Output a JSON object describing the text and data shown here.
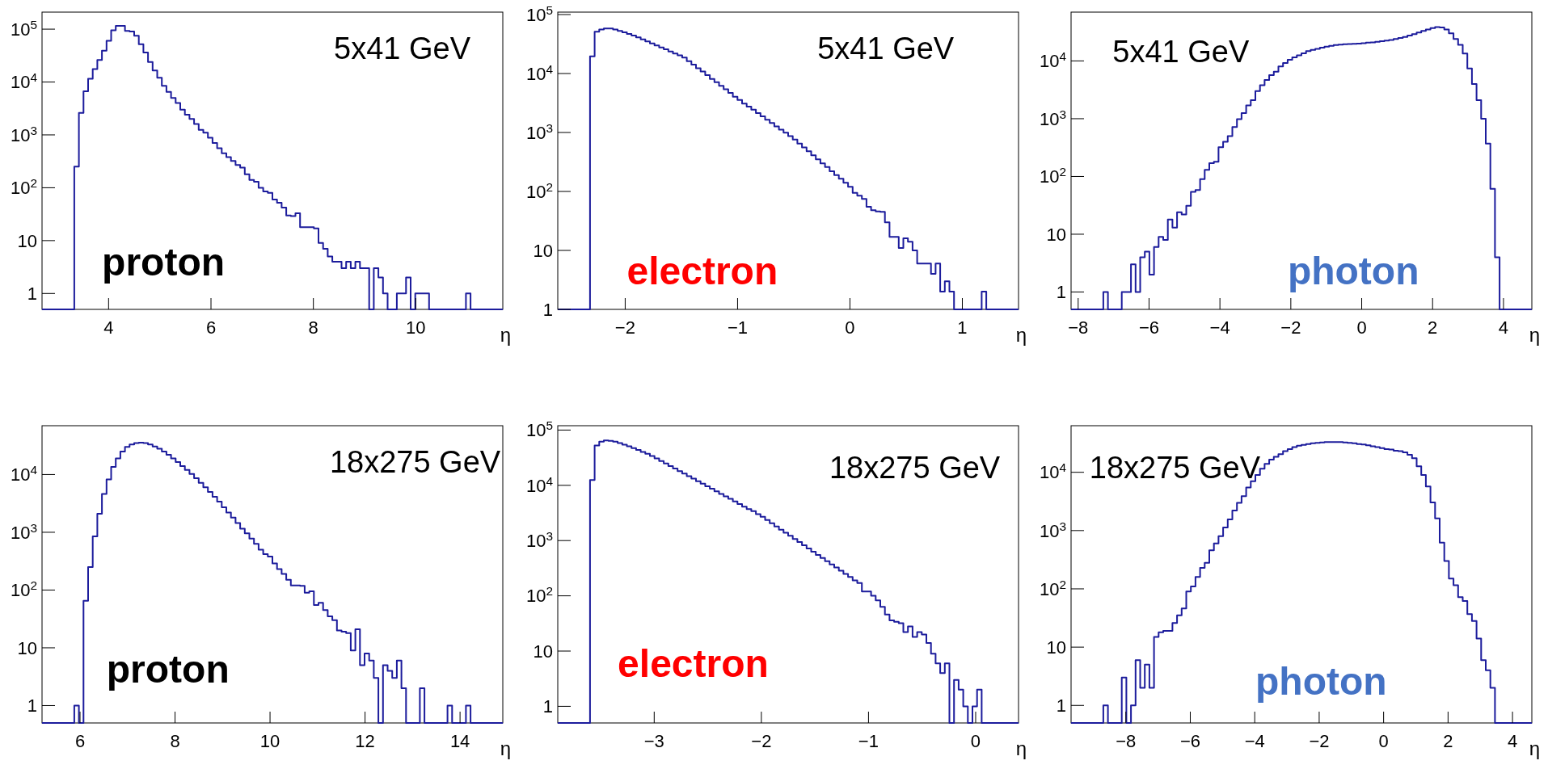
{
  "chart_data": [
    {
      "type": "histogram",
      "xlabel": "η",
      "annotations": [
        "5x41 GeV",
        "proton"
      ],
      "log": "y",
      "color": "#1c1c9c",
      "xlim": [
        2.7,
        11.7
      ],
      "ylim": [
        0.5,
        210000
      ],
      "xticks": [
        4,
        6,
        8,
        10
      ],
      "yticks": [
        {
          "value": 1,
          "label": "1"
        },
        {
          "value": 10,
          "label": "10"
        },
        {
          "value": 100,
          "label": "10$^{2}$"
        },
        {
          "value": 1000,
          "label": "10$^{3}$"
        },
        {
          "value": 10000,
          "label": "10$^{4}$"
        },
        {
          "value": 100000,
          "label": "10$^{5}$"
        }
      ],
      "bins": [
        2.7,
        2.79,
        2.88,
        2.97,
        3.06,
        3.15,
        3.24,
        3.33,
        3.42,
        3.51,
        3.6,
        3.69,
        3.78,
        3.87,
        3.96,
        4.05,
        4.14,
        4.23,
        4.32,
        4.41,
        4.5,
        4.59,
        4.68,
        4.77,
        4.86,
        4.95,
        5.04,
        5.13,
        5.22,
        5.31,
        5.4,
        5.49,
        5.58,
        5.67,
        5.76,
        5.85,
        5.94,
        6.03,
        6.12,
        6.21,
        6.3,
        6.39,
        6.48,
        6.57,
        6.66,
        6.75,
        6.84,
        6.93,
        7.02,
        7.11,
        7.2,
        7.29,
        7.38,
        7.47,
        7.56,
        7.65,
        7.74,
        7.83,
        7.92,
        8.01,
        8.1,
        8.19,
        8.28,
        8.37,
        8.46,
        8.55,
        8.64,
        8.73,
        8.82,
        8.91,
        9,
        9.09,
        9.18,
        9.27,
        9.36,
        9.45,
        9.54,
        9.63,
        9.72,
        9.81,
        9.9,
        9.99,
        10.08,
        10.17,
        10.26,
        10.35,
        10.44,
        10.53,
        10.62,
        10.71,
        10.8,
        10.89,
        10.98,
        11.07,
        11.16,
        11.25,
        11.34,
        11.43,
        11.52,
        11.61,
        11.7
      ],
      "values": [
        null,
        null,
        null,
        null,
        null,
        null,
        null,
        250,
        2600,
        6700,
        11500,
        17500,
        26000,
        39000,
        60000,
        95000,
        115000,
        115000,
        93000,
        90000,
        75000,
        52000,
        36000,
        24000,
        16500,
        12000,
        8500,
        6500,
        5000,
        4000,
        3000,
        2400,
        2000,
        1600,
        1250,
        1100,
        880,
        700,
        560,
        450,
        380,
        320,
        270,
        240,
        180,
        140,
        130,
        100,
        85,
        80,
        60,
        52,
        42,
        30,
        29,
        33,
        18,
        18,
        18,
        17,
        9,
        7,
        5,
        4,
        4,
        3,
        4,
        3,
        4,
        3,
        3,
        null,
        3,
        2,
        1,
        null,
        null,
        1,
        1,
        2,
        null,
        1,
        1,
        1,
        null,
        null,
        null,
        null,
        null,
        null,
        null,
        null,
        1,
        null,
        null,
        null,
        null,
        null,
        null,
        null
      ]
    },
    {
      "type": "histogram",
      "xlabel": "η",
      "annotations": [
        "5x41 GeV",
        "electron"
      ],
      "log": "y",
      "color": "#1c1c9c",
      "xlim": [
        -2.6,
        1.5
      ],
      "ylim": [
        1,
        110000
      ],
      "xticks": [
        {
          "value": -2,
          "label": "−2"
        },
        {
          "value": -1,
          "label": "−1"
        },
        0,
        1
      ],
      "yticks": [
        {
          "value": 1,
          "label": "1"
        },
        {
          "value": 10,
          "label": "10"
        },
        {
          "value": 100,
          "label": "10$^{2}$"
        },
        {
          "value": 1000,
          "label": "10$^{3}$"
        },
        {
          "value": 10000,
          "label": "10$^{4}$"
        },
        {
          "value": 100000,
          "label": "10$^{5}$"
        }
      ],
      "bins": [
        -2.6,
        -2.559,
        -2.518,
        -2.477,
        -2.436,
        -2.395,
        -2.354,
        -2.313,
        -2.272,
        -2.231,
        -2.19,
        -2.149,
        -2.108,
        -2.067,
        -2.026,
        -1.985,
        -1.944,
        -1.903,
        -1.862,
        -1.821,
        -1.78,
        -1.739,
        -1.698,
        -1.657,
        -1.616,
        -1.575,
        -1.534,
        -1.493,
        -1.452,
        -1.411,
        -1.37,
        -1.329,
        -1.288,
        -1.247,
        -1.206,
        -1.165,
        -1.124,
        -1.083,
        -1.042,
        -1.001,
        -0.96,
        -0.919,
        -0.878,
        -0.837,
        -0.796,
        -0.755,
        -0.714,
        -0.673,
        -0.632,
        -0.591,
        -0.55,
        -0.509,
        -0.468,
        -0.427,
        -0.386,
        -0.345,
        -0.304,
        -0.263,
        -0.222,
        -0.181,
        -0.14,
        -0.099,
        -0.058,
        -0.017,
        0.024,
        0.065,
        0.106,
        0.147,
        0.188,
        0.229,
        0.27,
        0.311,
        0.352,
        0.393,
        0.434,
        0.475,
        0.516,
        0.557,
        0.598,
        0.639,
        0.68,
        0.721,
        0.762,
        0.803,
        0.844,
        0.885,
        0.926,
        0.967,
        1.008,
        1.049,
        1.09,
        1.131,
        1.172,
        1.213,
        1.254,
        1.295,
        1.336,
        1.377,
        1.418,
        1.459,
        1.5
      ],
      "values": [
        null,
        null,
        null,
        null,
        null,
        null,
        null,
        19500,
        51000,
        56000,
        58000,
        58000,
        56000,
        53000,
        50000,
        47000,
        44000,
        41000,
        38000,
        35000,
        32500,
        30000,
        27700,
        25700,
        23700,
        21900,
        20300,
        18700,
        16200,
        14200,
        12300,
        10800,
        9400,
        8100,
        7100,
        6200,
        5400,
        4700,
        4050,
        3550,
        3100,
        2750,
        2430,
        2140,
        1880,
        1650,
        1450,
        1270,
        1120,
        990,
        870,
        760,
        650,
        560,
        480,
        410,
        350,
        300,
        260,
        220,
        190,
        165,
        140,
        120,
        95,
        85,
        75,
        55,
        48,
        46,
        45,
        30,
        17,
        17,
        11,
        16,
        14,
        10,
        6,
        6,
        6,
        4,
        6,
        2,
        3,
        2,
        null,
        null,
        null,
        null,
        null,
        null,
        2,
        null,
        null,
        null,
        null,
        null,
        null,
        null
      ]
    },
    {
      "type": "histogram",
      "xlabel": "η",
      "annotations": [
        "5x41 GeV",
        "photon"
      ],
      "log": "y",
      "color": "#1c1c9c",
      "xlim": [
        -8.2,
        4.8
      ],
      "ylim": [
        0.5,
        70000
      ],
      "xticks": [
        {
          "value": -8,
          "label": "−8"
        },
        {
          "value": -6,
          "label": "−6"
        },
        {
          "value": -4,
          "label": "−4"
        },
        {
          "value": -2,
          "label": "−2"
        },
        0,
        2,
        4
      ],
      "yticks": [
        {
          "value": 1,
          "label": "1"
        },
        {
          "value": 10,
          "label": "10"
        },
        {
          "value": 100,
          "label": "10$^{2}$"
        },
        {
          "value": 1000,
          "label": "10$^{3}$"
        },
        {
          "value": 10000,
          "label": "10$^{4}$"
        }
      ],
      "bins": [
        -8.2,
        -8.07,
        -7.94,
        -7.81,
        -7.68,
        -7.55,
        -7.42,
        -7.29,
        -7.16,
        -7.03,
        -6.9,
        -6.77,
        -6.64,
        -6.51,
        -6.38,
        -6.25,
        -6.12,
        -5.99,
        -5.86,
        -5.73,
        -5.6,
        -5.47,
        -5.34,
        -5.21,
        -5.08,
        -4.95,
        -4.82,
        -4.69,
        -4.56,
        -4.43,
        -4.3,
        -4.17,
        -4.04,
        -3.91,
        -3.78,
        -3.65,
        -3.52,
        -3.39,
        -3.26,
        -3.13,
        -3,
        -2.87,
        -2.74,
        -2.61,
        -2.48,
        -2.35,
        -2.22,
        -2.09,
        -1.96,
        -1.83,
        -1.7,
        -1.57,
        -1.44,
        -1.31,
        -1.18,
        -1.05,
        -0.92,
        -0.79,
        -0.66,
        -0.53,
        -0.4,
        -0.27,
        -0.14,
        -0.01,
        0.12,
        0.25,
        0.38,
        0.51,
        0.64,
        0.77,
        0.9,
        1.03,
        1.16,
        1.29,
        1.42,
        1.55,
        1.68,
        1.81,
        1.94,
        2.07,
        2.2,
        2.33,
        2.46,
        2.59,
        2.72,
        2.85,
        2.98,
        3.11,
        3.24,
        3.37,
        3.5,
        3.63,
        3.76,
        3.89,
        4.02,
        4.15,
        4.28,
        4.41,
        4.54,
        4.67,
        4.8
      ],
      "values": [
        null,
        null,
        null,
        null,
        null,
        null,
        null,
        1,
        null,
        null,
        null,
        1,
        1,
        3,
        1,
        4,
        5,
        2,
        6,
        9,
        8,
        18,
        13,
        24,
        22,
        31,
        54,
        58,
        90,
        130,
        170,
        180,
        320,
        400,
        500,
        720,
        980,
        1250,
        1700,
        2100,
        3000,
        3800,
        4700,
        5700,
        6500,
        8000,
        9200,
        10500,
        11500,
        12500,
        13500,
        14800,
        15500,
        16200,
        17000,
        17700,
        18300,
        18800,
        19200,
        19500,
        19700,
        19800,
        20000,
        20300,
        20700,
        21000,
        21500,
        22000,
        22500,
        23000,
        24000,
        25000,
        26000,
        27500,
        29000,
        31000,
        33000,
        35000,
        37000,
        38500,
        38000,
        35000,
        30000,
        24000,
        19000,
        13400,
        7400,
        4000,
        2100,
        1000,
        370,
        61,
        4,
        null,
        null,
        null,
        null,
        null,
        null,
        null
      ]
    },
    {
      "type": "histogram",
      "xlabel": "η",
      "annotations": [
        "18x275 GeV",
        "proton"
      ],
      "log": "y",
      "color": "#1c1c9c",
      "xlim": [
        5.2,
        14.9
      ],
      "ylim": [
        0.5,
        70000
      ],
      "xticks": [
        6,
        8,
        10,
        12,
        14
      ],
      "yticks": [
        {
          "value": 1,
          "label": "1"
        },
        {
          "value": 10,
          "label": "10"
        },
        {
          "value": 100,
          "label": "10$^{2}$"
        },
        {
          "value": 1000,
          "label": "10$^{3}$"
        },
        {
          "value": 10000,
          "label": "10$^{4}$"
        }
      ],
      "bins": [
        5.2,
        5.297,
        5.394,
        5.491,
        5.588,
        5.685,
        5.782,
        5.879,
        5.976,
        6.073,
        6.17,
        6.267,
        6.364,
        6.461,
        6.558,
        6.655,
        6.752,
        6.849,
        6.946,
        7.043,
        7.14,
        7.237,
        7.334,
        7.431,
        7.528,
        7.625,
        7.722,
        7.819,
        7.916,
        8.013,
        8.11,
        8.207,
        8.304,
        8.401,
        8.498,
        8.595,
        8.692,
        8.789,
        8.886,
        8.983,
        9.08,
        9.177,
        9.274,
        9.371,
        9.468,
        9.565,
        9.662,
        9.759,
        9.856,
        9.953,
        10.05,
        10.147,
        10.244,
        10.341,
        10.438,
        10.535,
        10.632,
        10.729,
        10.826,
        10.923,
        11.02,
        11.117,
        11.214,
        11.311,
        11.408,
        11.505,
        11.602,
        11.699,
        11.796,
        11.893,
        11.99,
        12.087,
        12.184,
        12.281,
        12.378,
        12.475,
        12.572,
        12.669,
        12.766,
        12.863,
        12.96,
        13.057,
        13.154,
        13.251,
        13.348,
        13.445,
        13.542,
        13.639,
        13.736,
        13.833,
        13.93,
        14.027,
        14.124,
        14.221,
        14.318,
        14.415,
        14.512,
        14.609,
        14.706,
        14.803,
        14.9
      ],
      "values": [
        null,
        null,
        null,
        null,
        null,
        null,
        null,
        1,
        null,
        65,
        250,
        850,
        2100,
        4600,
        8200,
        13500,
        19000,
        25000,
        30000,
        33000,
        35000,
        35500,
        35000,
        33000,
        30500,
        28000,
        25000,
        22000,
        19000,
        16500,
        14000,
        12000,
        10200,
        8600,
        7200,
        6000,
        5000,
        4100,
        3400,
        2700,
        2200,
        1800,
        1450,
        1150,
        960,
        780,
        630,
        500,
        420,
        380,
        290,
        230,
        190,
        150,
        120,
        120,
        118,
        90,
        95,
        55,
        60,
        45,
        35,
        30,
        20,
        19,
        18,
        9,
        21,
        5,
        8,
        6,
        3,
        null,
        5,
        4,
        3,
        6,
        2,
        null,
        null,
        null,
        2,
        null,
        null,
        null,
        null,
        null,
        1,
        null,
        null,
        null,
        1,
        null,
        null,
        null,
        null,
        null,
        null,
        null
      ]
    },
    {
      "type": "histogram",
      "xlabel": "η",
      "annotations": [
        "18x275 GeV",
        "electron"
      ],
      "log": "y",
      "color": "#1c1c9c",
      "xlim": [
        -3.9,
        0.4
      ],
      "ylim": [
        0.5,
        120000
      ],
      "xticks": [
        {
          "value": -3,
          "label": "−3"
        },
        {
          "value": -2,
          "label": "−2"
        },
        {
          "value": -1,
          "label": "−1"
        },
        0
      ],
      "yticks": [
        {
          "value": 1,
          "label": "1"
        },
        {
          "value": 10,
          "label": "10"
        },
        {
          "value": 100,
          "label": "10$^{2}$"
        },
        {
          "value": 1000,
          "label": "10$^{3}$"
        },
        {
          "value": 10000,
          "label": "10$^{4}$"
        },
        {
          "value": 100000,
          "label": "10$^{5}$"
        }
      ],
      "bins": [
        -3.9,
        -3.857,
        -3.814,
        -3.771,
        -3.728,
        -3.685,
        -3.642,
        -3.599,
        -3.556,
        -3.513,
        -3.47,
        -3.427,
        -3.384,
        -3.341,
        -3.298,
        -3.255,
        -3.212,
        -3.169,
        -3.126,
        -3.083,
        -3.04,
        -2.997,
        -2.954,
        -2.911,
        -2.868,
        -2.825,
        -2.782,
        -2.739,
        -2.696,
        -2.653,
        -2.61,
        -2.567,
        -2.524,
        -2.481,
        -2.438,
        -2.395,
        -2.352,
        -2.309,
        -2.266,
        -2.223,
        -2.18,
        -2.137,
        -2.094,
        -2.051,
        -2.008,
        -1.965,
        -1.922,
        -1.879,
        -1.836,
        -1.793,
        -1.75,
        -1.707,
        -1.664,
        -1.621,
        -1.578,
        -1.535,
        -1.492,
        -1.449,
        -1.406,
        -1.363,
        -1.32,
        -1.277,
        -1.234,
        -1.191,
        -1.148,
        -1.105,
        -1.062,
        -1.019,
        -0.976,
        -0.933,
        -0.89,
        -0.847,
        -0.804,
        -0.761,
        -0.718,
        -0.675,
        -0.632,
        -0.589,
        -0.546,
        -0.503,
        -0.46,
        -0.417,
        -0.374,
        -0.331,
        -0.288,
        -0.245,
        -0.202,
        -0.159,
        -0.116,
        -0.073,
        -0.03,
        0.013,
        0.056,
        0.099,
        0.142,
        0.185,
        0.228,
        0.271,
        0.314,
        0.357,
        0.4
      ],
      "values": [
        null,
        null,
        null,
        null,
        null,
        null,
        null,
        12500,
        52500,
        61500,
        65000,
        64000,
        61500,
        58000,
        54500,
        51000,
        47300,
        43600,
        40300,
        37300,
        34000,
        30600,
        27500,
        24800,
        22300,
        20100,
        18100,
        16300,
        14600,
        13200,
        11900,
        10700,
        9600,
        8700,
        7800,
        7000,
        6300,
        5700,
        5100,
        4600,
        4100,
        3700,
        3400,
        3000,
        2700,
        2350,
        2060,
        1800,
        1580,
        1390,
        1220,
        1070,
        940,
        820,
        720,
        630,
        550,
        485,
        425,
        370,
        325,
        285,
        250,
        220,
        190,
        170,
        120,
        120,
        100,
        83,
        63,
        46,
        36,
        34,
        32,
        22,
        28,
        18,
        22,
        20,
        14,
        9,
        6,
        4,
        6,
        null,
        3,
        2,
        1,
        null,
        1,
        2,
        null,
        null,
        null,
        null,
        null,
        null,
        null,
        null
      ]
    },
    {
      "type": "histogram",
      "xlabel": "η",
      "annotations": [
        "18x275 GeV",
        "photon"
      ],
      "log": "y",
      "color": "#1c1c9c",
      "xlim": [
        -9.7,
        4.6
      ],
      "ylim": [
        0.5,
        63000
      ],
      "xticks": [
        {
          "value": -8,
          "label": "−8"
        },
        {
          "value": -6,
          "label": "−6"
        },
        {
          "value": -4,
          "label": "−4"
        },
        {
          "value": -2,
          "label": "−2"
        },
        0,
        2,
        4
      ],
      "yticks": [
        {
          "value": 1,
          "label": "1"
        },
        {
          "value": 10,
          "label": "10"
        },
        {
          "value": 100,
          "label": "10$^{2}$"
        },
        {
          "value": 1000,
          "label": "10$^{3}$"
        },
        {
          "value": 10000,
          "label": "10$^{4}$"
        }
      ],
      "bins": [
        -9.7,
        -9.557,
        -9.414,
        -9.271,
        -9.128,
        -8.985,
        -8.842,
        -8.699,
        -8.556,
        -8.413,
        -8.27,
        -8.127,
        -7.984,
        -7.841,
        -7.698,
        -7.555,
        -7.412,
        -7.269,
        -7.126,
        -6.983,
        -6.84,
        -6.697,
        -6.554,
        -6.411,
        -6.268,
        -6.125,
        -5.982,
        -5.839,
        -5.696,
        -5.553,
        -5.41,
        -5.267,
        -5.124,
        -4.981,
        -4.838,
        -4.695,
        -4.552,
        -4.409,
        -4.266,
        -4.123,
        -3.98,
        -3.837,
        -3.694,
        -3.551,
        -3.408,
        -3.265,
        -3.122,
        -2.979,
        -2.836,
        -2.693,
        -2.55,
        -2.407,
        -2.264,
        -2.121,
        -1.978,
        -1.835,
        -1.692,
        -1.549,
        -1.406,
        -1.263,
        -1.12,
        -0.977,
        -0.834,
        -0.691,
        -0.548,
        -0.405,
        -0.262,
        -0.119,
        0.024,
        0.167,
        0.31,
        0.453,
        0.596,
        0.739,
        0.882,
        1.025,
        1.168,
        1.311,
        1.454,
        1.597,
        1.74,
        1.883,
        2.026,
        2.169,
        2.312,
        2.455,
        2.598,
        2.741,
        2.884,
        3.027,
        3.17,
        3.313,
        3.456,
        3.599,
        3.742,
        3.885,
        4.028,
        4.171,
        4.314,
        4.457,
        4.6
      ],
      "values": [
        null,
        null,
        null,
        null,
        null,
        null,
        null,
        1,
        null,
        null,
        null,
        3,
        null,
        1,
        6,
        2,
        5,
        2,
        15,
        18,
        19,
        19,
        26,
        35,
        46,
        90,
        110,
        160,
        230,
        280,
        460,
        600,
        800,
        1130,
        1550,
        2200,
        3000,
        3900,
        5500,
        7000,
        9000,
        11500,
        14000,
        16500,
        18500,
        20500,
        23000,
        25000,
        27000,
        28500,
        29500,
        30500,
        31500,
        32000,
        32500,
        33000,
        33000,
        33000,
        33000,
        32500,
        32000,
        31500,
        30500,
        30000,
        29000,
        28000,
        27000,
        26000,
        25000,
        24500,
        23500,
        23000,
        22000,
        20000,
        17400,
        12700,
        9000,
        5700,
        3050,
        1620,
        620,
        300,
        150,
        115,
        72,
        62,
        37,
        28,
        14,
        6,
        4,
        2,
        null,
        null,
        null,
        null,
        null,
        null,
        null,
        null
      ]
    }
  ]
}
